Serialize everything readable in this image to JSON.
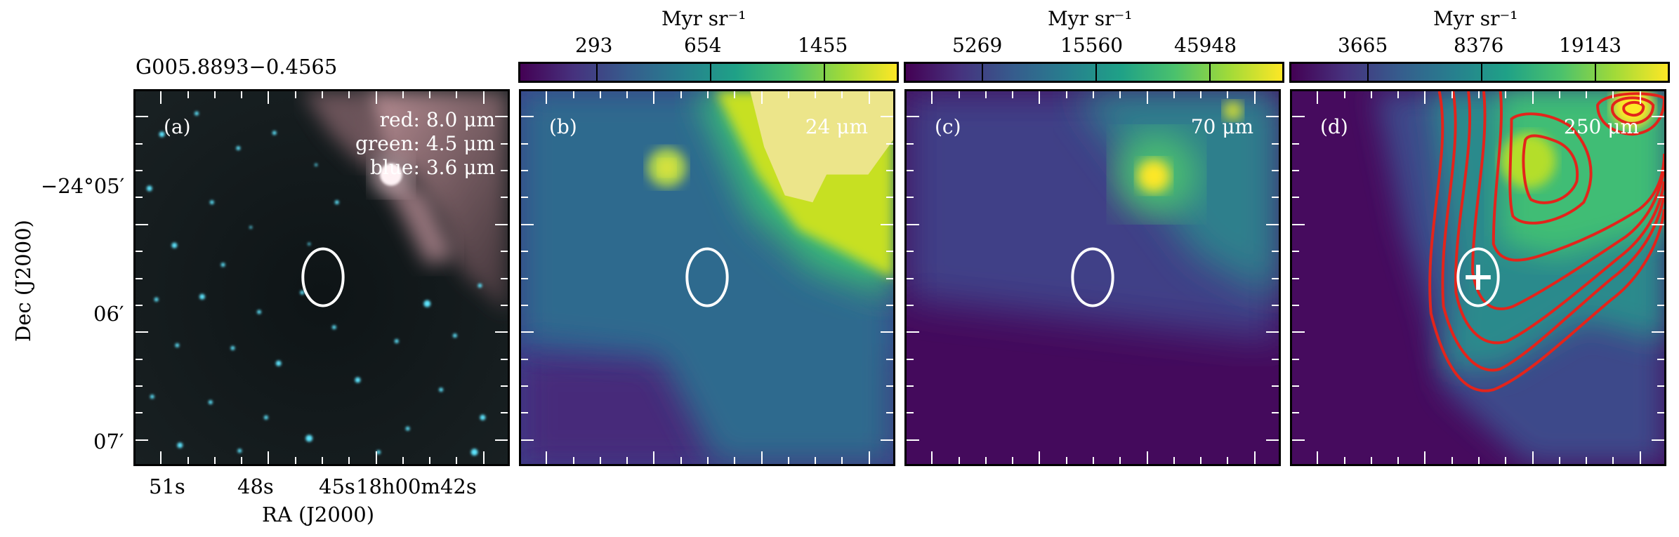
{
  "figure": {
    "source_name": "G005.8893−0.4565",
    "x_axis_title": "RA (J2000)",
    "y_axis_title": "Dec (J2000)",
    "x_tick_labels": [
      "51s",
      "48s",
      "45s",
      "18h00m42s"
    ],
    "y_tick_labels": [
      "−24°05′",
      "06′",
      "07′"
    ]
  },
  "colorbars": [
    {
      "unit": "Myr sr⁻¹",
      "ticks": [
        "293",
        "654",
        "1455"
      ]
    },
    {
      "unit": "Myr sr⁻¹",
      "ticks": [
        "5269",
        "15560",
        "45948"
      ]
    },
    {
      "unit": "Myr sr⁻¹",
      "ticks": [
        "3665",
        "8376",
        "19143"
      ]
    }
  ],
  "panels": [
    {
      "label": "(a)",
      "legend": [
        "red: 8.0 μm",
        "green: 4.5 μm",
        "blue: 3.6 μm"
      ]
    },
    {
      "label": "(b)",
      "wavelength": "24 μm"
    },
    {
      "label": "(c)",
      "wavelength": "70 μm"
    },
    {
      "label": "(d)",
      "wavelength": "250 μm"
    }
  ],
  "colors": {
    "viridis_low": "#440154",
    "viridis_mid": "#21918c",
    "viridis_high": "#fde725",
    "contour": "#e3241b",
    "marker": "#ffffff"
  }
}
